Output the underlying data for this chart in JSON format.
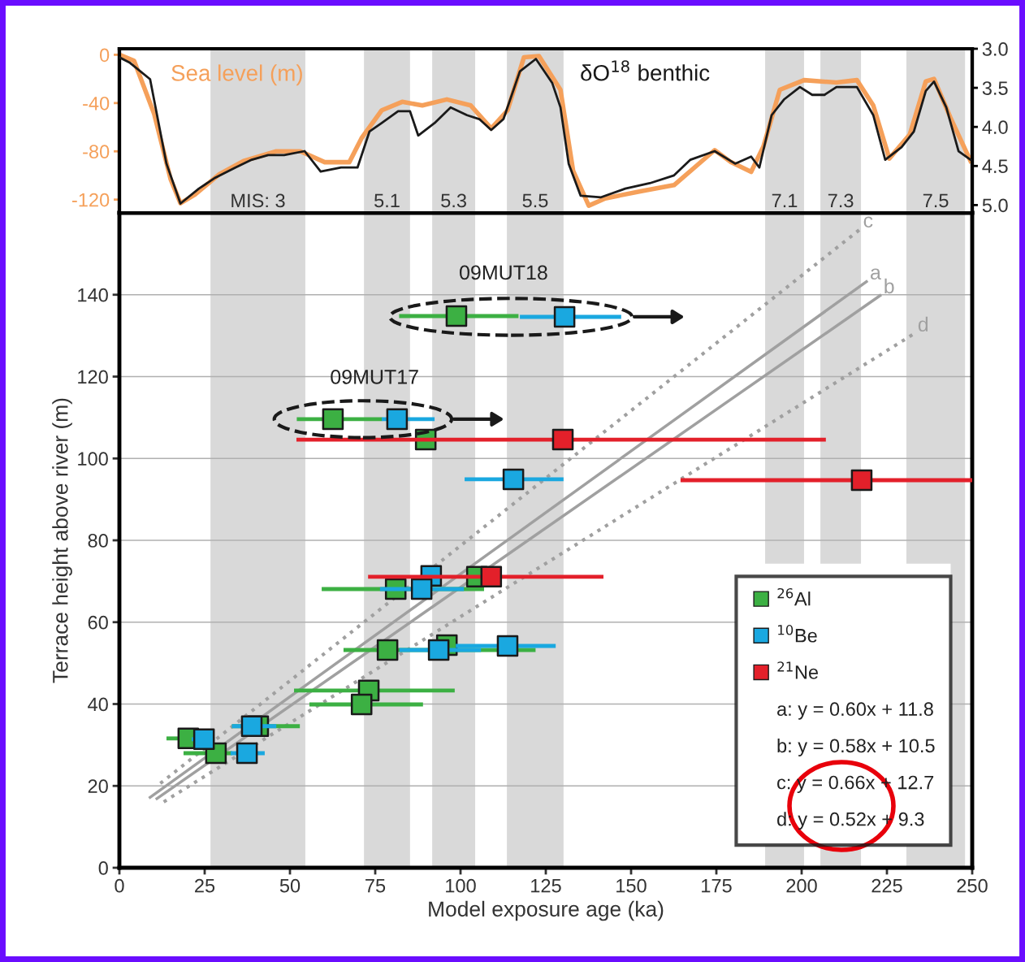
{
  "chart_data": [
    {
      "type": "line",
      "xlim": [
        0,
        250
      ],
      "ylim": [
        -131,
        5
      ],
      "yticks": [
        0,
        -40,
        -80,
        -120
      ],
      "y2lim": [
        5.1,
        3.0
      ],
      "y2ticks": [
        {
          "value": 3,
          "label": "3.0"
        },
        {
          "value": 3.5,
          "label": "3.5"
        },
        {
          "value": 4,
          "label": "4.0"
        },
        {
          "value": 4.5,
          "label": "4.5"
        },
        {
          "value": 5,
          "label": "5.0"
        }
      ],
      "tick_labels": "y",
      "grid": false,
      "series": [
        {
          "name": "Sea level (m)",
          "color": "#f5a05a",
          "axis": "y",
          "x": [
            0,
            4.3,
            10.2,
            15,
            17.9,
            22.1,
            29.3,
            36.4,
            46,
            53.1,
            60.2,
            67.4,
            71,
            76.9,
            82.9,
            88.8,
            96,
            103,
            109,
            113.8,
            118.6,
            123,
            129.3,
            133,
            137.6,
            142.4,
            153,
            162.6,
            174.5,
            179.3,
            185.2,
            188.8,
            193.6,
            200.7,
            210.2,
            216.2,
            221,
            225.7,
            231.7,
            236.4,
            238.8,
            243.6,
            249.5
          ],
          "values": [
            0,
            -5,
            -49,
            -103,
            -123,
            -116,
            -99,
            -88,
            -80,
            -80,
            -89,
            -89,
            -69,
            -46,
            -39,
            -42,
            -37,
            -42,
            -61,
            -46,
            -2,
            -1,
            -29,
            -96,
            -125,
            -119,
            -113,
            -108,
            -79,
            -89,
            -97,
            -76,
            -29,
            -21,
            -23,
            -21,
            -42,
            -86,
            -66,
            -22,
            -20,
            -52,
            -88
          ]
        },
        {
          "name": "δO$^{18}$ benthic",
          "color": "#1a1a1a",
          "axis": "y2",
          "x": [
            0,
            3.1,
            9,
            13.8,
            17.9,
            23.3,
            28.1,
            34,
            38.8,
            43.6,
            48.3,
            54.3,
            59,
            65,
            69.8,
            73.3,
            76.9,
            81.7,
            85.2,
            87.6,
            92.4,
            97.1,
            101.9,
            105.5,
            109,
            112.6,
            117.4,
            122.1,
            126.9,
            129.3,
            131.7,
            135.2,
            141.2,
            148.3,
            155.5,
            162.6,
            167.4,
            174.5,
            180.5,
            185.2,
            187.6,
            191.2,
            194.8,
            199.5,
            203.1,
            206.7,
            210.2,
            216.2,
            221,
            224.5,
            229.3,
            232.9,
            236.4,
            238.8,
            242.4,
            246,
            249.5
          ],
          "values": [
            3.11,
            3.18,
            3.39,
            4.47,
            4.98,
            4.79,
            4.65,
            4.52,
            4.42,
            4.36,
            4.36,
            4.31,
            4.57,
            4.52,
            4.52,
            4.06,
            3.95,
            3.8,
            3.8,
            4.11,
            3.95,
            3.75,
            3.85,
            3.9,
            4.04,
            3.9,
            3.29,
            3.13,
            3.44,
            3.75,
            4.47,
            4.88,
            4.9,
            4.79,
            4.72,
            4.62,
            4.42,
            4.31,
            4.47,
            4.38,
            4.52,
            3.85,
            3.65,
            3.49,
            3.59,
            3.59,
            3.49,
            3.49,
            3.85,
            4.42,
            4.26,
            4.06,
            3.54,
            3.42,
            3.75,
            4.31,
            4.42
          ]
        }
      ],
      "bands": [
        {
          "axis": "x",
          "from": 26.7,
          "to": 54.5,
          "label": "MIS: 3",
          "color": "#d9d9d9"
        },
        {
          "axis": "x",
          "from": 71.7,
          "to": 85.2,
          "label": "5.1",
          "color": "#d9d9d9"
        },
        {
          "axis": "x",
          "from": 91.7,
          "to": 104.3,
          "label": "5.3",
          "color": "#d9d9d9"
        },
        {
          "axis": "x",
          "from": 113.6,
          "to": 130.2,
          "label": "5.5",
          "color": "#d9d9d9"
        },
        {
          "axis": "x",
          "from": 189.3,
          "to": 200.7,
          "label": "7.1",
          "color": "#d9d9d9"
        },
        {
          "axis": "x",
          "from": 205.5,
          "to": 217.4,
          "label": "7.3",
          "color": "#d9d9d9"
        },
        {
          "axis": "x",
          "from": 230.7,
          "to": 247.9,
          "label": "7.5",
          "color": "#d9d9d9"
        }
      ]
    },
    {
      "type": "scatter",
      "xlabel": "Model exposure age (ka)",
      "ylabel": "Terrace height above river (m)",
      "xlim": [
        0,
        250
      ],
      "ylim": [
        0,
        160
      ],
      "xticks": [
        0,
        25,
        50,
        75,
        100,
        125,
        150,
        175,
        200,
        225,
        250
      ],
      "yticks": [
        0,
        20,
        40,
        60,
        80,
        100,
        120,
        140
      ],
      "grid": "y",
      "legend": "bottom right",
      "marker": "square",
      "series": [
        {
          "name": "$^{26}$Al",
          "color": "#3cb043",
          "x": [
            98.8,
            62.6,
            89.8,
            104.8,
            81,
            96,
            78.6,
            73.1,
            71,
            40.7,
            20.2,
            28.3
          ],
          "values": [
            134.8,
            109.6,
            104.6,
            71.1,
            68.1,
            54.4,
            53.2,
            43.3,
            39.9,
            34.6,
            31.6,
            28
          ],
          "xerrors": [
            [
              82,
              117
            ],
            [
              52,
              77
            ],
            null,
            null,
            [
              59.3,
              106.9
            ],
            null,
            [
              65.7,
              122
            ],
            [
              51.2,
              98.3
            ],
            [
              55.7,
              89
            ],
            [
              33,
              52.9
            ],
            [
              13.8,
              20.2
            ],
            [
              18.8,
              33
            ]
          ]
        },
        {
          "name": "$^{10}$Be",
          "color": "#1aa8e0",
          "x": [
            130.5,
            81.4,
            115.5,
            91.4,
            88.6,
            93.6,
            113.8,
            38.8,
            24.8,
            37.4
          ],
          "values": [
            134.6,
            109.6,
            94.9,
            71.3,
            68.1,
            53.2,
            54.2,
            34.6,
            31.4,
            28
          ],
          "xerrors": [
            [
              117.4,
              147.1
            ],
            [
              76.9,
              92.4
            ],
            [
              101.2,
              130.2
            ],
            null,
            [
              76.4,
              101
            ],
            [
              82.1,
              106
            ],
            [
              98.6,
              127.9
            ],
            [
              33,
              46
            ],
            [
              21.2,
              27.9
            ],
            [
              32.6,
              42.6
            ]
          ]
        },
        {
          "name": "$^{21}$Ne",
          "color": "#e3202a",
          "x": [
            130,
            217.6,
            109
          ],
          "values": [
            104.6,
            94.7,
            71.1
          ],
          "xerrors": [
            [
              51.9,
              207.1
            ],
            [
              164.5,
              250
            ],
            [
              72.9,
              141.9
            ]
          ]
        },
        {
          "name": "a",
          "type": "line",
          "marker": "none",
          "color": "#a0a0a0",
          "line_style": "solid",
          "x": [
            9,
            219
          ],
          "values": [
            17.2,
            143.2
          ]
        },
        {
          "name": "b",
          "type": "line",
          "marker": "none",
          "color": "#a0a0a0",
          "line_style": "solid",
          "x": [
            11,
            223
          ],
          "values": [
            16.9,
            139.8
          ]
        },
        {
          "name": "c",
          "type": "line",
          "marker": "none",
          "color": "#a0a0a0",
          "line_style": "dotted",
          "x": [
            12,
            217
          ],
          "values": [
            20.6,
            155.9
          ]
        },
        {
          "name": "d",
          "type": "line",
          "marker": "none",
          "color": "#a0a0a0",
          "line_style": "dotted",
          "x": [
            13,
            233
          ],
          "values": [
            16.1,
            130.5
          ]
        }
      ],
      "bands": [
        {
          "axis": "x",
          "from": 26.7,
          "to": 54.5,
          "color": "#d9d9d9"
        },
        {
          "axis": "x",
          "from": 71.7,
          "to": 85.2,
          "color": "#d9d9d9"
        },
        {
          "axis": "x",
          "from": 91.7,
          "to": 104.3,
          "color": "#d9d9d9"
        },
        {
          "axis": "x",
          "from": 113.6,
          "to": 130.2,
          "color": "#d9d9d9"
        },
        {
          "axis": "x",
          "from": 189.3,
          "to": 200.7,
          "color": "#d9d9d9"
        },
        {
          "axis": "x",
          "from": 205.5,
          "to": 217.4,
          "color": "#d9d9d9"
        },
        {
          "axis": "x",
          "from": 230.7,
          "to": 247.9,
          "color": "#d9d9d9"
        }
      ],
      "annotations": [
        "09MUT18",
        "09MUT17",
        "a: y = 0.60x + 11.8",
        "b: y = 0.58x + 10.5",
        "c: y = 0.66x + 12.7",
        "d: y = 0.52x + 9.3"
      ]
    }
  ]
}
